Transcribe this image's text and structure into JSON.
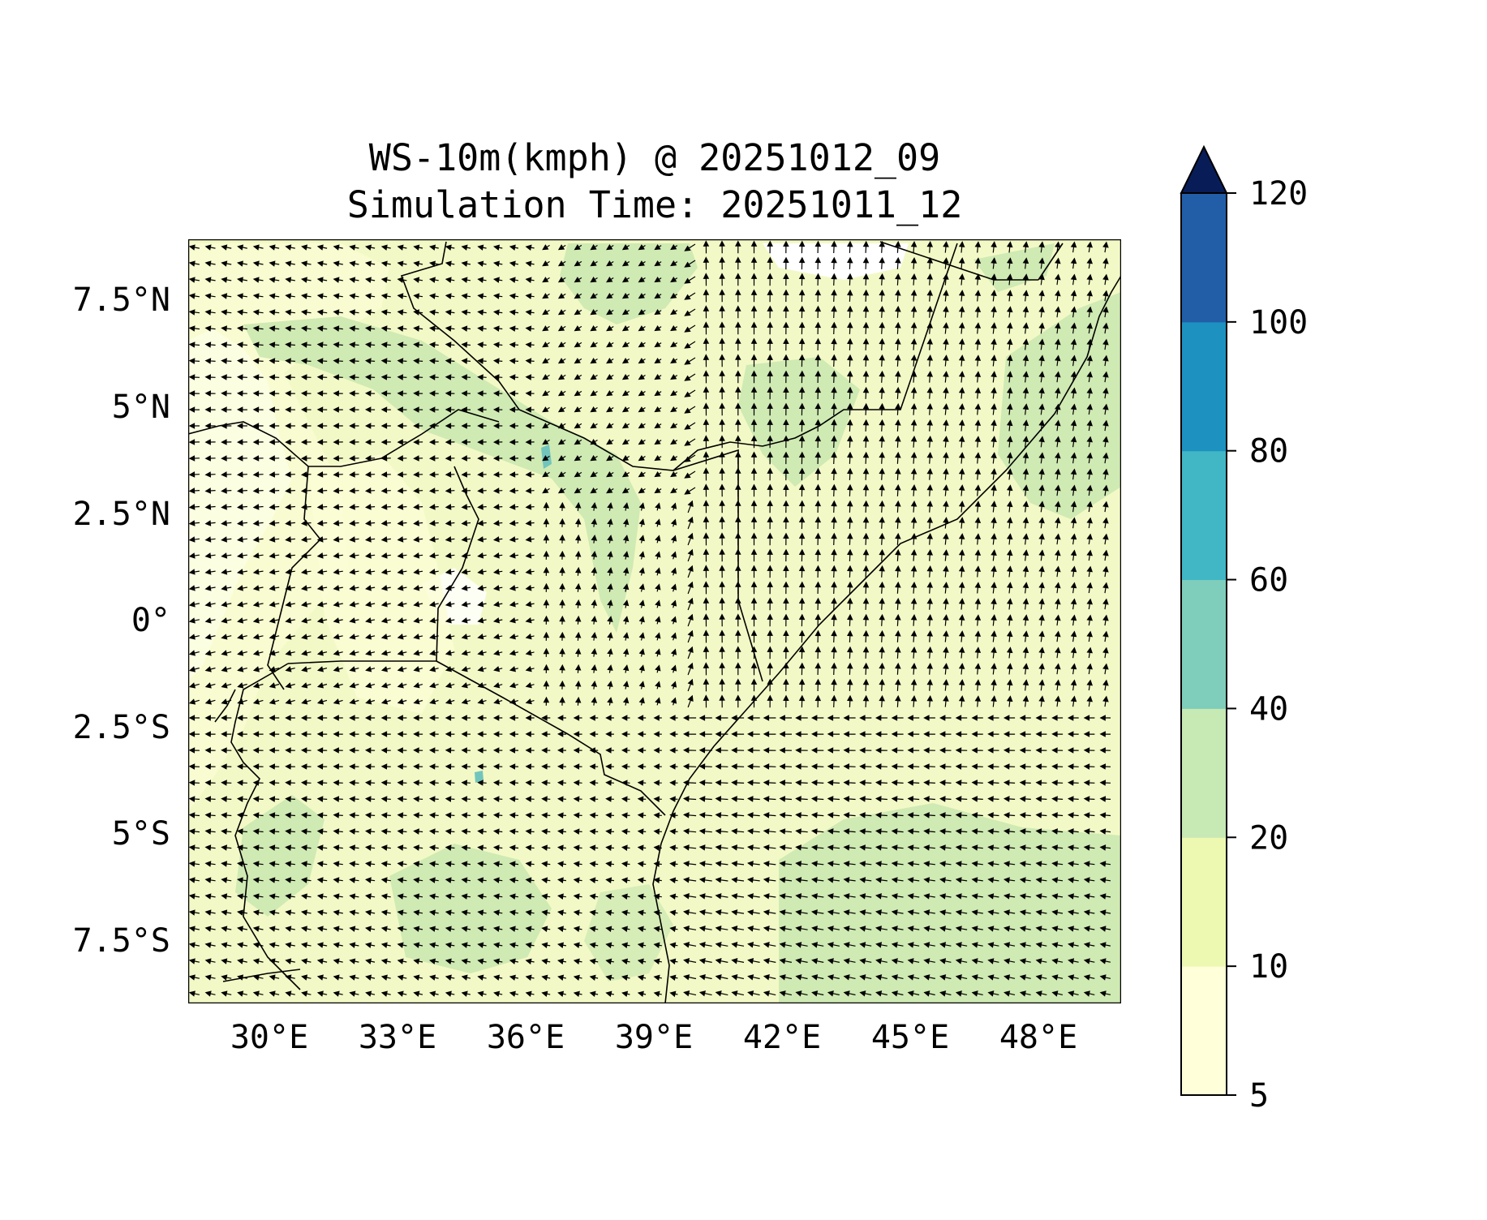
{
  "title": {
    "line1": "WS-10m(kmph) @ 20251012_09",
    "line2": "Simulation Time: 20251011_12"
  },
  "axes": {
    "x_ticks": [
      "30°E",
      "33°E",
      "36°E",
      "39°E",
      "42°E",
      "45°E",
      "48°E"
    ],
    "y_ticks": [
      "7.5°N",
      "5°N",
      "2.5°N",
      "0°",
      "2.5°S",
      "5°S",
      "7.5°S"
    ]
  },
  "chart_data": {
    "type": "heatmap",
    "variable": "WS-10m(kmph)",
    "valid_time": "20251012_09",
    "simulation_time": "20251011_12",
    "xlim": [
      27.8,
      49.7
    ],
    "ylim": [
      -9.0,
      8.9
    ],
    "x_tick_values": [
      30,
      33,
      36,
      39,
      42,
      45,
      48
    ],
    "y_tick_values": [
      7.5,
      5,
      2.5,
      0,
      -2.5,
      -5,
      -7.5
    ],
    "colorbar": {
      "levels": [
        5,
        10,
        20,
        40,
        60,
        80,
        100,
        120
      ],
      "labels": [
        "5",
        "10",
        "20",
        "40",
        "60",
        "80",
        "100",
        "120"
      ],
      "colors": [
        "#ffffd9",
        "#edf8b1",
        "#c7e9b4",
        "#7fcdbb",
        "#41b6c4",
        "#1d91c0",
        "#225ea8",
        "#0c2c84"
      ],
      "extend_max_color": "#081d58",
      "extend": "max"
    },
    "overlay": "wind vectors (quiver)",
    "colors": {
      "low_white": "#ffffff",
      "band_5_10": "#fbfdd4",
      "band_10_20": "#eff8bd",
      "band_20_40": "#cfeab3",
      "band_40_60": "#72c5bc",
      "arrow": "#000000",
      "border": "#000000"
    }
  }
}
